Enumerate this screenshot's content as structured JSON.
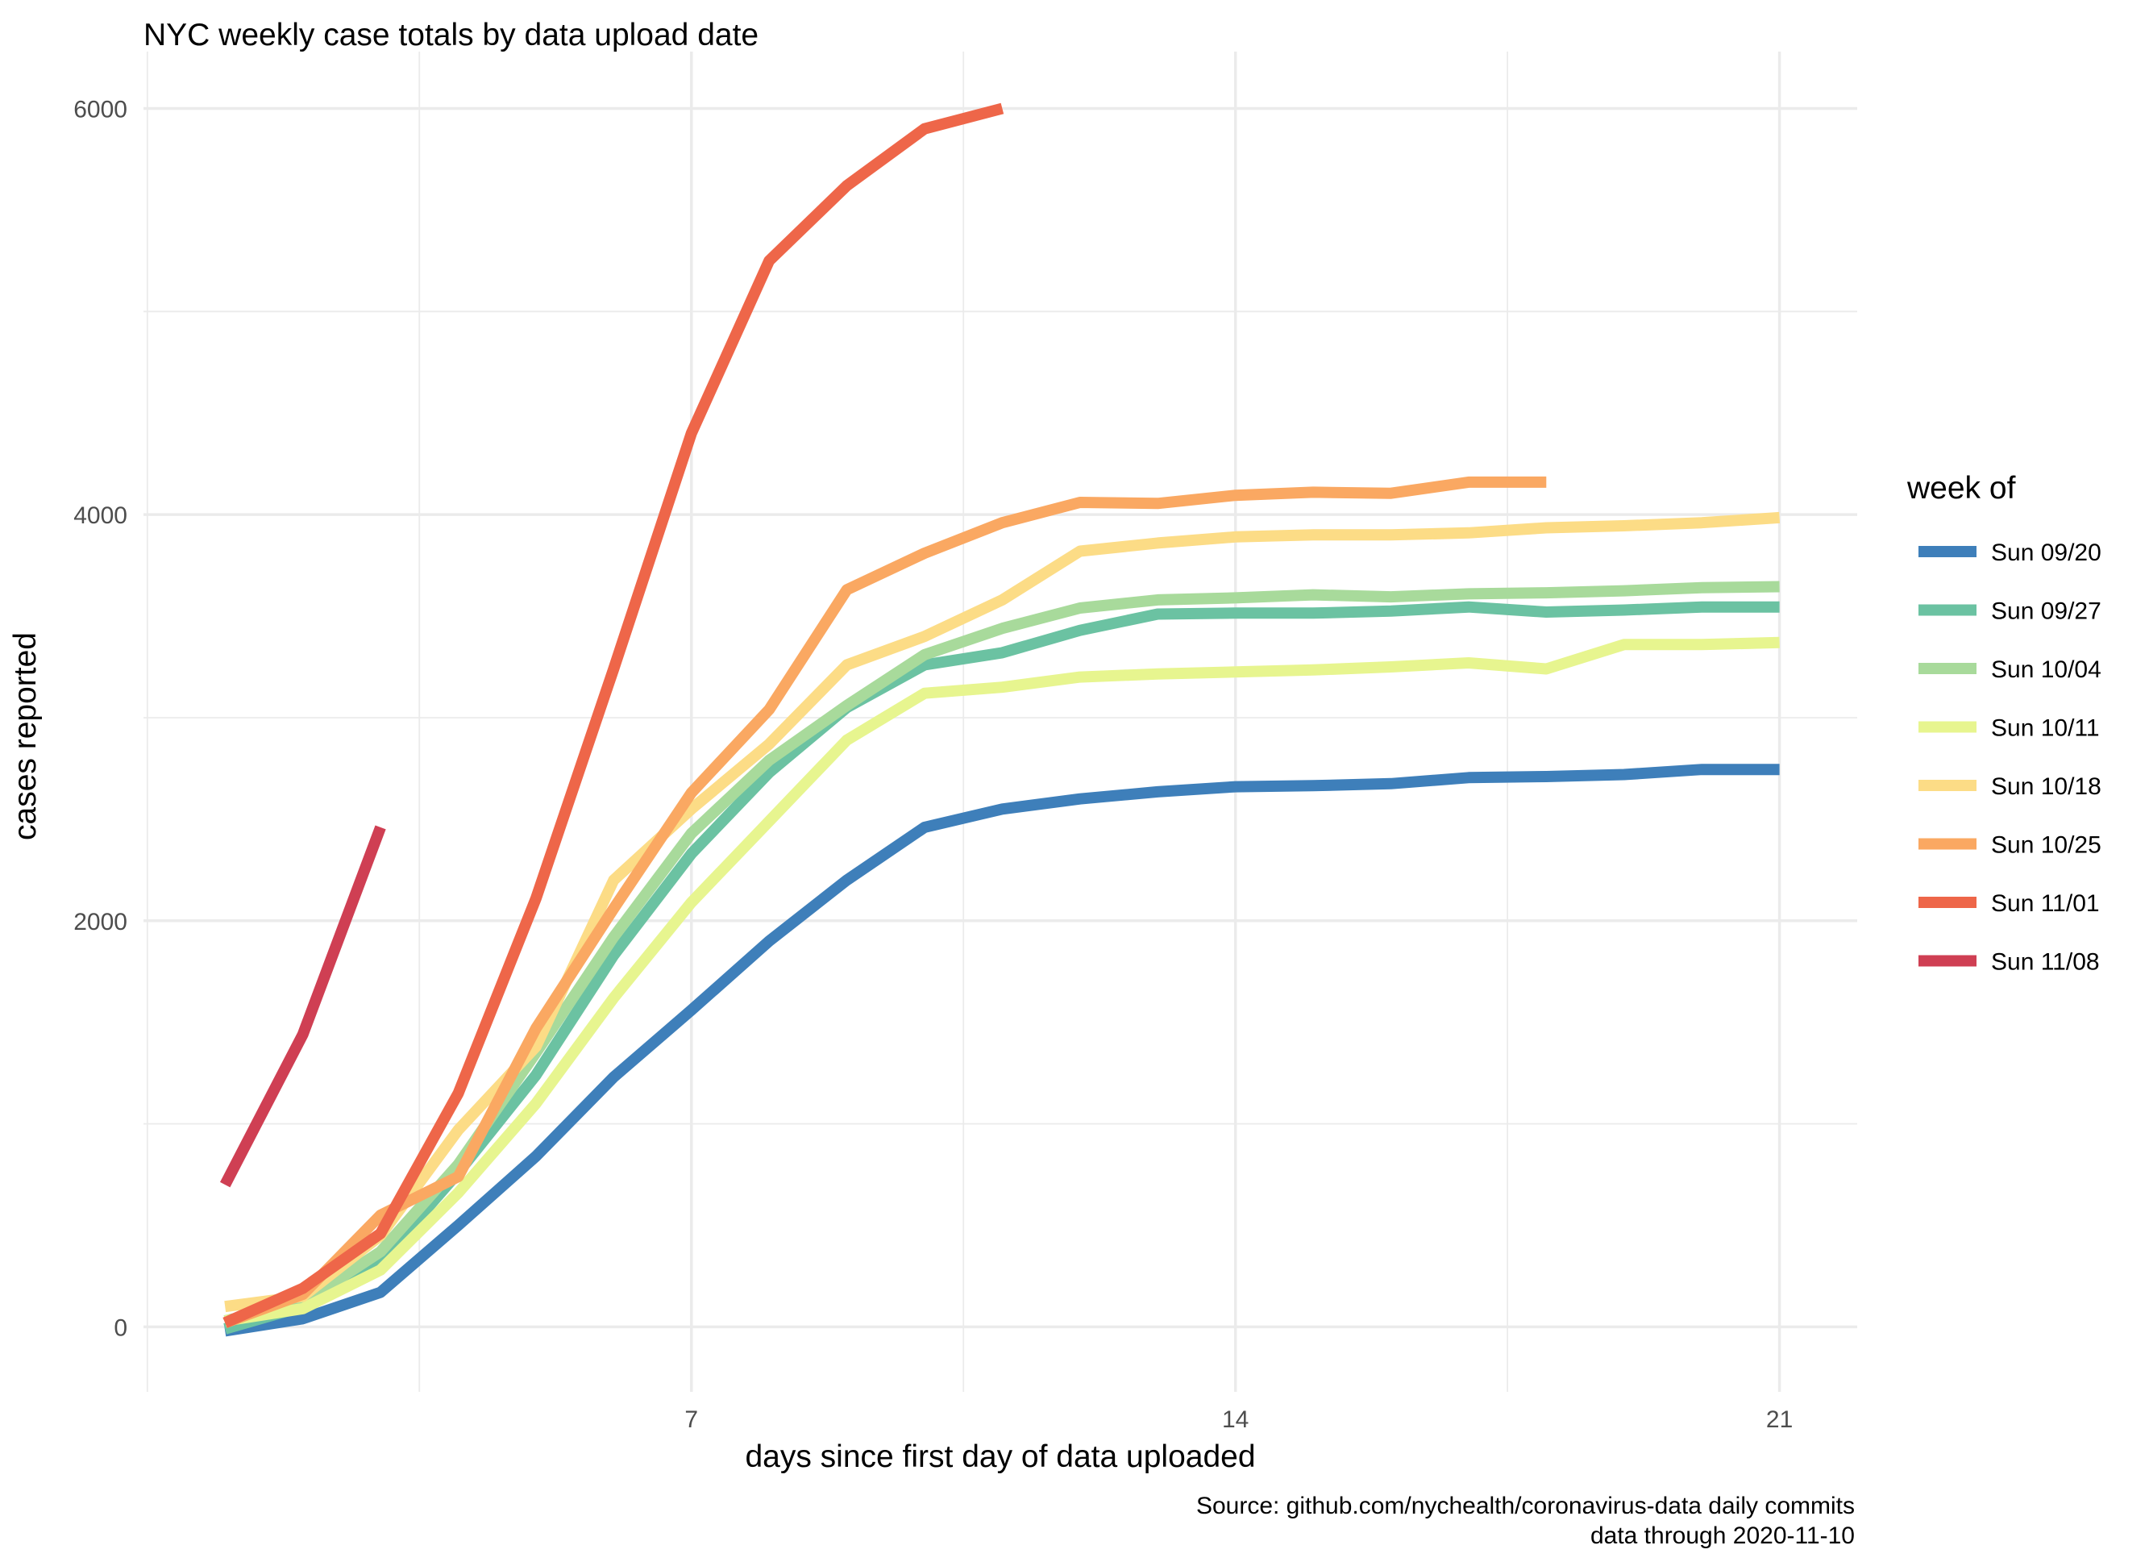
{
  "chart_data": {
    "type": "line",
    "title": "NYC weekly case totals by data upload date",
    "xlabel": "days since first day of data uploaded",
    "ylabel": "cases reported",
    "xlim": [
      -0.05,
      22.0
    ],
    "ylim": [
      -320,
      6280
    ],
    "x_major_ticks": [
      7,
      14,
      21
    ],
    "x_minor_ticks": [
      0,
      3.5,
      10.5,
      17.5
    ],
    "y_major_ticks": [
      0,
      2000,
      4000,
      6000
    ],
    "y_minor_ticks": [
      1000,
      3000,
      5000
    ],
    "x_tick_labels": [
      "7",
      "14",
      "21"
    ],
    "y_tick_labels": [
      "0",
      "2000",
      "4000",
      "6000"
    ],
    "grid": true,
    "legend": {
      "title": "week of",
      "position": "right"
    },
    "caption": [
      "Source: github.com/nychealth/coronavirus-data daily commits",
      "data through 2020-11-10"
    ],
    "series": [
      {
        "name": "Sun 09/20",
        "color": "#3E7FBA",
        "x": [
          1,
          2,
          3,
          4,
          5,
          6,
          7,
          8,
          9,
          10,
          11,
          12,
          13,
          14,
          15,
          16,
          17,
          18,
          19,
          20,
          21
        ],
        "y": [
          -20,
          40,
          170,
          500,
          840,
          1230,
          1560,
          1900,
          2200,
          2460,
          2550,
          2600,
          2635,
          2660,
          2665,
          2675,
          2705,
          2710,
          2720,
          2745,
          2745
        ]
      },
      {
        "name": "Sun 09/27",
        "color": "#6BC2A2",
        "x": [
          1,
          2,
          3,
          4,
          5,
          6,
          7,
          8,
          9,
          10,
          11,
          12,
          13,
          14,
          15,
          16,
          17,
          18,
          19,
          20,
          21
        ],
        "y": [
          -10,
          100,
          320,
          760,
          1240,
          1830,
          2330,
          2730,
          3050,
          3260,
          3320,
          3430,
          3510,
          3515,
          3515,
          3525,
          3545,
          3520,
          3530,
          3545,
          3545
        ]
      },
      {
        "name": "Sun 10/04",
        "color": "#A8DA9B",
        "x": [
          1,
          2,
          3,
          4,
          5,
          6,
          7,
          8,
          9,
          10,
          11,
          12,
          13,
          14,
          15,
          16,
          17,
          18,
          19,
          20,
          21
        ],
        "y": [
          30,
          120,
          370,
          800,
          1350,
          1920,
          2430,
          2790,
          3060,
          3310,
          3440,
          3540,
          3580,
          3590,
          3605,
          3595,
          3610,
          3615,
          3625,
          3640,
          3645
        ]
      },
      {
        "name": "Sun 10/11",
        "color": "#E7F58F",
        "x": [
          1,
          2,
          3,
          4,
          5,
          6,
          7,
          8,
          9,
          10,
          11,
          12,
          13,
          14,
          15,
          16,
          17,
          18,
          19,
          20,
          21
        ],
        "y": [
          30,
          90,
          280,
          660,
          1100,
          1620,
          2090,
          2490,
          2890,
          3120,
          3150,
          3200,
          3215,
          3225,
          3235,
          3250,
          3270,
          3240,
          3360,
          3360,
          3370
        ]
      },
      {
        "name": "Sun 10/18",
        "color": "#FCDC86",
        "x": [
          1,
          2,
          3,
          4,
          5,
          6,
          7,
          8,
          9,
          10,
          11,
          12,
          13,
          14,
          15,
          16,
          17,
          18,
          19,
          20,
          21
        ],
        "y": [
          100,
          150,
          450,
          970,
          1380,
          2200,
          2550,
          2870,
          3260,
          3400,
          3580,
          3820,
          3860,
          3890,
          3900,
          3900,
          3910,
          3935,
          3945,
          3960,
          3985
        ]
      },
      {
        "name": "Sun 10/25",
        "color": "#FAA862",
        "x": [
          1,
          2,
          3,
          4,
          5,
          6,
          7,
          8,
          9,
          10,
          11,
          12,
          13,
          14,
          15,
          16,
          17,
          18
        ],
        "y": [
          20,
          160,
          550,
          740,
          1470,
          2060,
          2630,
          3040,
          3630,
          3810,
          3960,
          4060,
          4055,
          4095,
          4110,
          4105,
          4160,
          4160
        ]
      },
      {
        "name": "Sun 11/01",
        "color": "#EE6649",
        "x": [
          1,
          2,
          3,
          4,
          5,
          6,
          7,
          8,
          9,
          10,
          11
        ],
        "y": [
          20,
          190,
          460,
          1150,
          2110,
          3240,
          4400,
          5250,
          5620,
          5900,
          6000
        ]
      },
      {
        "name": "Sun 11/08",
        "color": "#CF3F53",
        "x": [
          1,
          2,
          3
        ],
        "y": [
          700,
          1440,
          2460
        ]
      }
    ]
  }
}
